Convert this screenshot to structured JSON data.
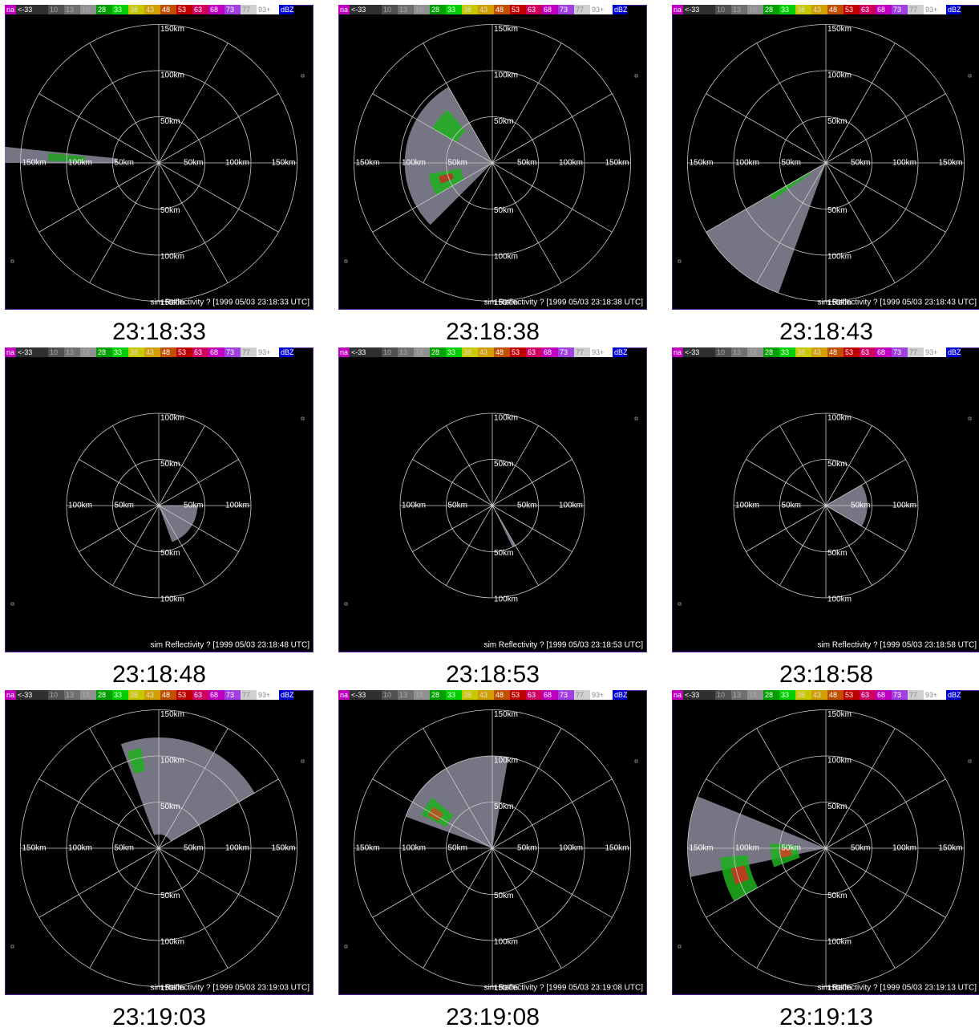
{
  "colorbar": [
    "na",
    "<-33",
    "10",
    "13",
    "18",
    "28",
    "33",
    "38",
    "43",
    "48",
    "53",
    "63",
    "68",
    "73",
    "77",
    "93+",
    "dBZ"
  ],
  "panels": [
    {
      "caption": "23:18:33",
      "footer": "sim Reflectivity ? [1999 05/03 23:18:33 UTC]",
      "rings": [
        "50km",
        "100km",
        "150km"
      ]
    },
    {
      "caption": "23:18:38",
      "footer": "sim Reflectivity ? [1999 05/03 23:18:38 UTC]",
      "rings": [
        "50km",
        "100km",
        "150km"
      ]
    },
    {
      "caption": "23:18:43",
      "footer": "sim Reflectivity ? [1999 05/03 23:18:43 UTC]",
      "rings": [
        "50km",
        "100km",
        "150km"
      ]
    },
    {
      "caption": "23:18:48",
      "footer": "sim Reflectivity ? [1999 05/03 23:18:48 UTC]",
      "rings": [
        "50km",
        "100km"
      ]
    },
    {
      "caption": "23:18:53",
      "footer": "sim Reflectivity ? [1999 05/03 23:18:53 UTC]",
      "rings": [
        "50km",
        "100km"
      ]
    },
    {
      "caption": "23:18:58",
      "footer": "sim Reflectivity ? [1999 05/03 23:18:58 UTC]",
      "rings": [
        "50km",
        "100km"
      ]
    },
    {
      "caption": "23:19:03",
      "footer": "sim Reflectivity ? [1999 05/03 23:19:03 UTC]",
      "rings": [
        "50km",
        "100km",
        "150km"
      ]
    },
    {
      "caption": "23:19:08",
      "footer": "sim Reflectivity ? [1999 05/03 23:19:08 UTC]",
      "rings": [
        "50km",
        "100km",
        "150km"
      ]
    },
    {
      "caption": "23:19:13",
      "footer": "sim Reflectivity ? [1999 05/03 23:19:13 UTC]",
      "rings": [
        "50km",
        "100km",
        "150km"
      ]
    }
  ]
}
